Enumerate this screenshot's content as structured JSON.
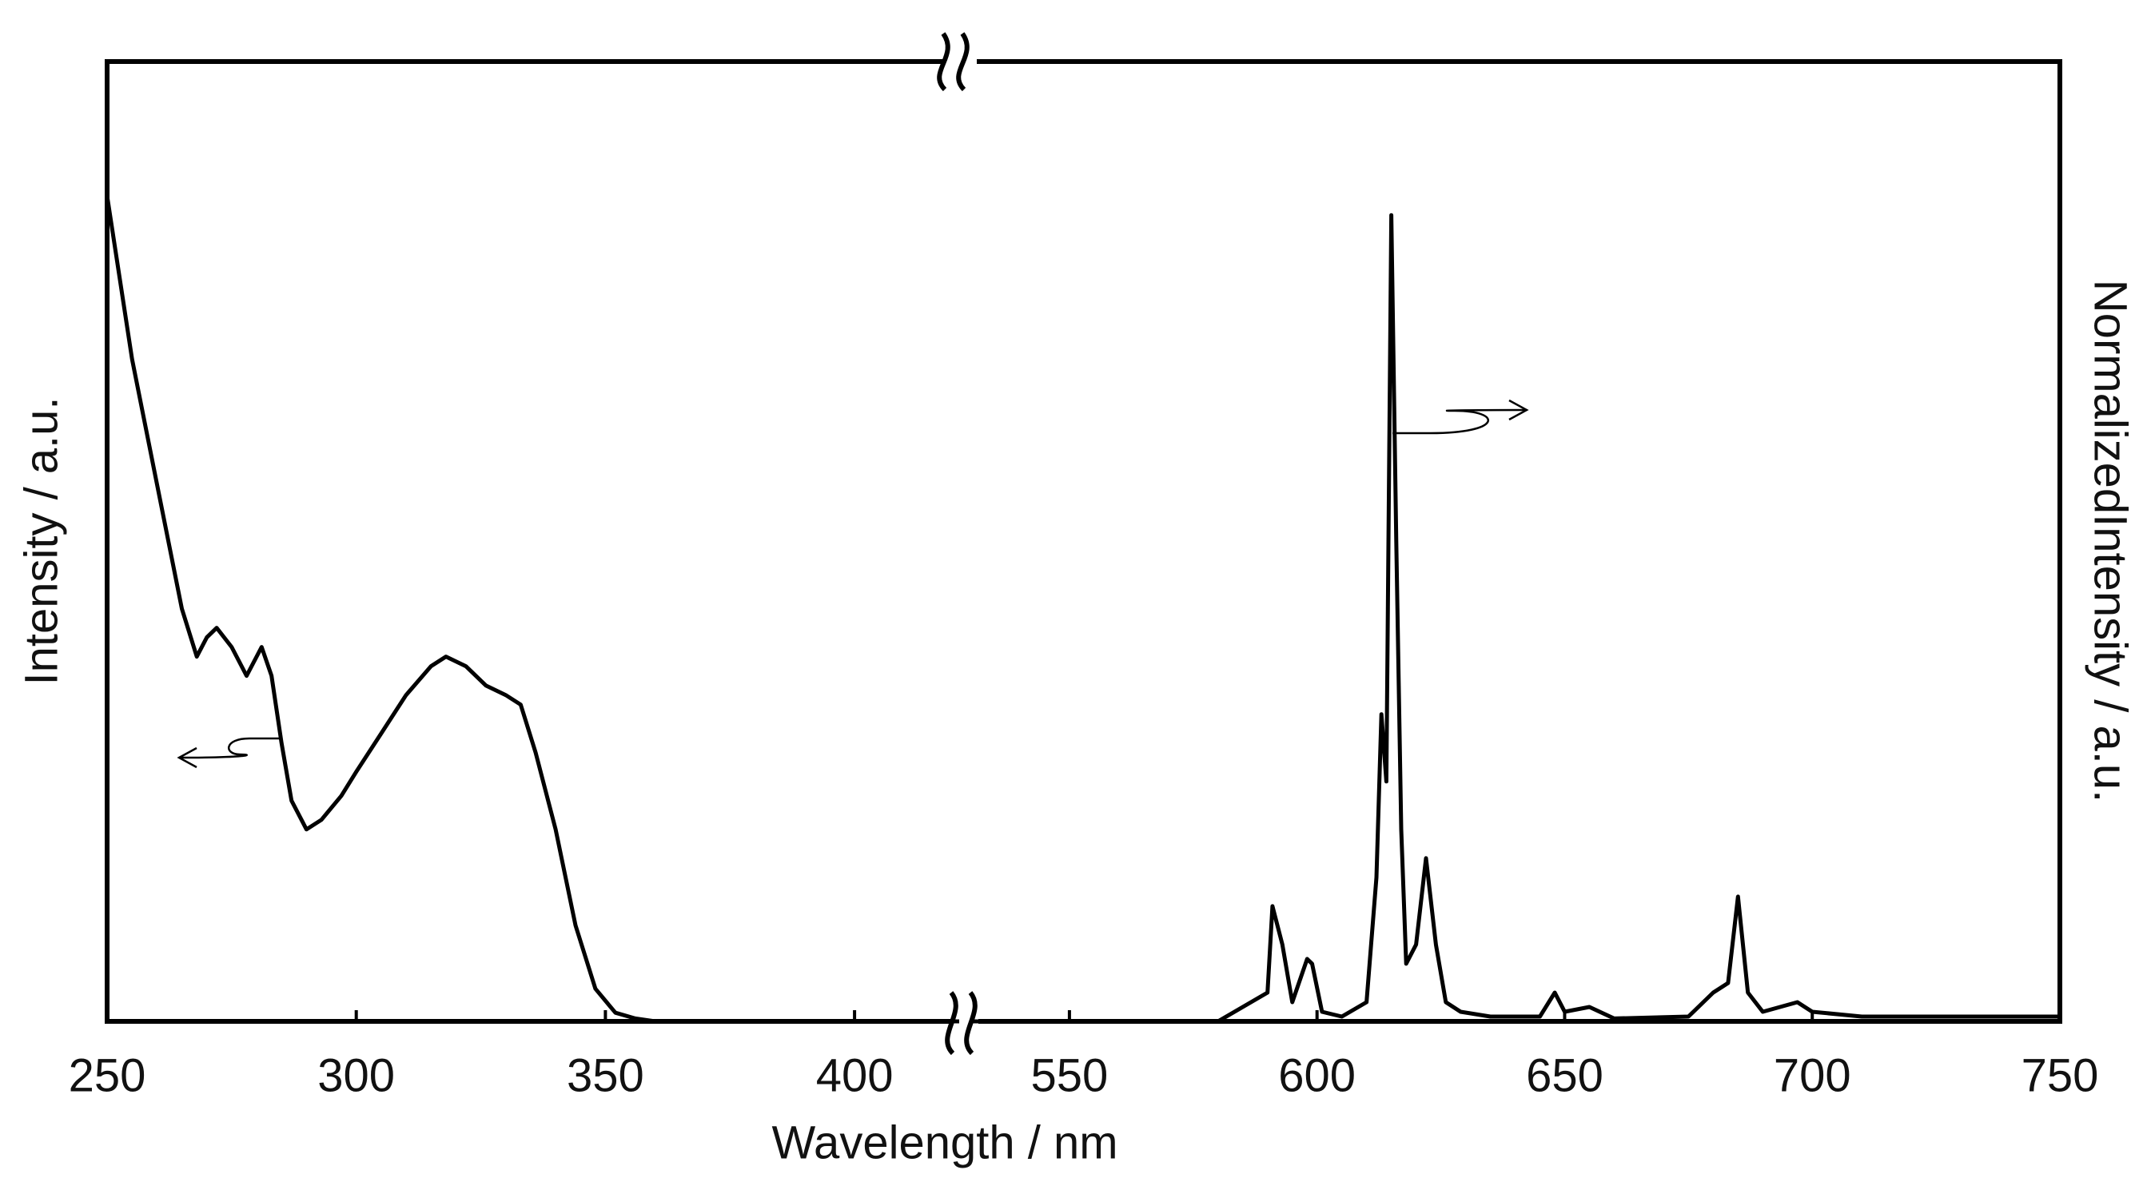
{
  "chart_data": [
    {
      "type": "line",
      "xlabel": "Wavelength / nm",
      "ylabel": "Intensity / a.u.",
      "xlim": [
        250,
        421
      ],
      "xticks": [
        250,
        300,
        350,
        400
      ],
      "ylim": [
        0,
        1
      ],
      "series": [
        {
          "color": "#000000",
          "x": [
            250,
            255,
            260,
            265,
            268,
            270,
            272,
            275,
            278,
            281,
            283,
            285,
            287,
            290,
            293,
            297,
            300,
            305,
            310,
            315,
            318,
            322,
            326,
            330,
            333,
            336,
            340,
            344,
            348,
            352,
            356,
            360,
            421
          ],
          "values": [
            0.86,
            0.69,
            0.56,
            0.43,
            0.38,
            0.4,
            0.41,
            0.39,
            0.36,
            0.39,
            0.36,
            0.29,
            0.23,
            0.2,
            0.21,
            0.235,
            0.26,
            0.3,
            0.34,
            0.37,
            0.38,
            0.37,
            0.35,
            0.34,
            0.33,
            0.28,
            0.2,
            0.1,
            0.034,
            0.009,
            0.003,
            0.0,
            0.0
          ]
        }
      ]
    },
    {
      "type": "line",
      "y2label": "NormalizedIntensity / a.u.",
      "xlim": [
        530,
        750
      ],
      "xticks": [
        550,
        600,
        650,
        700,
        750
      ],
      "y2lim": [
        0,
        1
      ],
      "series": [
        {
          "color": "#000000",
          "axis": "y2",
          "x": [
            530,
            580,
            590,
            591,
            593,
            595,
            598,
            599,
            601,
            605,
            610,
            612,
            613,
            614,
            615,
            616,
            617,
            618,
            620,
            622,
            624,
            626,
            629,
            635,
            645,
            648,
            650,
            655,
            660,
            675,
            680,
            683,
            685,
            687,
            690,
            697,
            700,
            710,
            750
          ],
          "values": [
            0,
            0,
            0.03,
            0.12,
            0.08,
            0.02,
            0.065,
            0.06,
            0.01,
            0.005,
            0.02,
            0.15,
            0.32,
            0.25,
            0.84,
            0.5,
            0.2,
            0.06,
            0.08,
            0.17,
            0.08,
            0.02,
            0.01,
            0.005,
            0.005,
            0.03,
            0.01,
            0.015,
            0.003,
            0.005,
            0.03,
            0.04,
            0.13,
            0.03,
            0.01,
            0.02,
            0.01,
            0.005,
            0.005
          ]
        }
      ]
    }
  ]
}
